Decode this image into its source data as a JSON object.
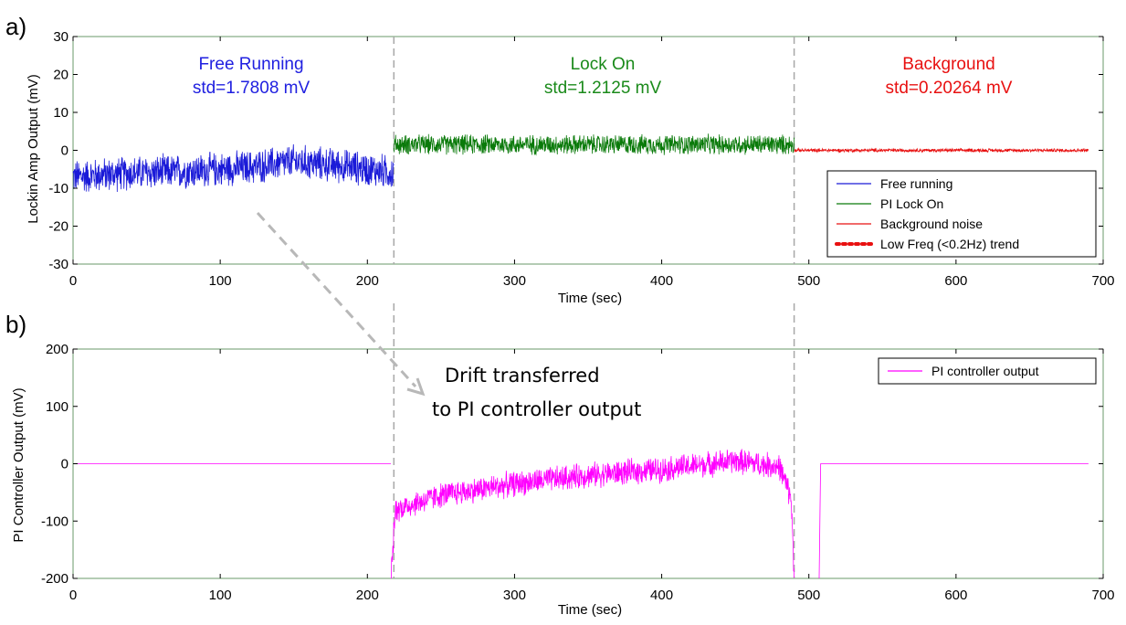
{
  "chart_data": [
    {
      "type": "line",
      "panel_label": "a)",
      "xlabel": "Time (sec)",
      "ylabel": "Lockin Amp Output (mV)",
      "xlim": [
        0,
        700
      ],
      "ylim": [
        -30,
        30
      ],
      "x_ticks": [
        0,
        100,
        200,
        300,
        400,
        500,
        600,
        700
      ],
      "y_ticks": [
        -30,
        -20,
        -10,
        0,
        10,
        20,
        30
      ],
      "grid": false,
      "legend_position": "bottom-right",
      "region_dividers_x": [
        218,
        490
      ],
      "regions": [
        {
          "name": "Free Running",
          "std": "std=1.7808 mV",
          "color": "#2020e0"
        },
        {
          "name": "Lock On",
          "std": "std=1.2125 mV",
          "color": "#1a8a1a"
        },
        {
          "name": "Background",
          "std": "std=0.20264 mV",
          "color": "#e81010"
        }
      ],
      "series": [
        {
          "name": "Free running",
          "color": "#1a1ad8",
          "x_range": [
            0,
            218
          ],
          "trend_points": [
            [
              0,
              -7
            ],
            [
              40,
              -6
            ],
            [
              80,
              -5.5
            ],
            [
              120,
              -4.5
            ],
            [
              150,
              -3
            ],
            [
              180,
              -4
            ],
            [
              210,
              -5.5
            ],
            [
              218,
              -6
            ]
          ],
          "noise_amplitude": 4.5
        },
        {
          "name": "PI Lock On",
          "color": "#0a7a0a",
          "x_range": [
            218,
            490
          ],
          "trend_points": [
            [
              218,
              1.5
            ],
            [
              490,
              1.5
            ]
          ],
          "noise_amplitude": 2.6
        },
        {
          "name": "Background noise",
          "color": "#e81010",
          "x_range": [
            490,
            690
          ],
          "trend_points": [
            [
              490,
              0
            ],
            [
              690,
              0
            ]
          ],
          "noise_amplitude": 0.45
        }
      ],
      "legend": [
        "Free running",
        "PI Lock On",
        "Background noise",
        "Low Freq (<0.2Hz) trend"
      ],
      "legend_styles": [
        {
          "color": "#1a1ad8",
          "style": "solid"
        },
        {
          "color": "#0a7a0a",
          "style": "solid"
        },
        {
          "color": "#e81010",
          "style": "solid"
        },
        {
          "color": "#e81010",
          "style": "dotted"
        }
      ]
    },
    {
      "type": "line",
      "panel_label": "b)",
      "xlabel": "Time (sec)",
      "ylabel": "PI Controller Output (mV)",
      "xlim": [
        0,
        700
      ],
      "ylim": [
        -200,
        200
      ],
      "x_ticks": [
        0,
        100,
        200,
        300,
        400,
        500,
        600,
        700
      ],
      "y_ticks": [
        -200,
        -100,
        0,
        100,
        200
      ],
      "grid": false,
      "legend_position": "top-right",
      "region_dividers_x": [
        218,
        490
      ],
      "annotation": {
        "lines": [
          "Drift transferred",
          "to PI controller output"
        ]
      },
      "series": [
        {
          "name": "PI controller output",
          "color": "#ff00ff",
          "segments": [
            {
              "x_range": [
                0,
                216
              ],
              "trend_points": [
                [
                  0,
                  0
                ],
                [
                  216,
                  0
                ]
              ],
              "noise_amplitude": 0
            },
            {
              "x_range": [
                216,
                490
              ],
              "trend_points": [
                [
                  216,
                  -200
                ],
                [
                  219,
                  -80
                ],
                [
                  250,
                  -55
                ],
                [
                  300,
                  -35
                ],
                [
                  350,
                  -20
                ],
                [
                  400,
                  -10
                ],
                [
                  450,
                  5
                ],
                [
                  480,
                  -5
                ],
                [
                  488,
                  -60
                ],
                [
                  490,
                  -200
                ]
              ],
              "noise_amplitude": 22
            },
            {
              "x_range": [
                507,
                690
              ],
              "trend_points": [
                [
                  507,
                  -200
                ],
                [
                  508,
                  0
                ],
                [
                  690,
                  0
                ]
              ],
              "noise_amplitude": 0
            }
          ]
        }
      ],
      "legend": [
        "PI controller output"
      ],
      "legend_styles": [
        {
          "color": "#ff00ff",
          "style": "solid"
        }
      ]
    }
  ]
}
